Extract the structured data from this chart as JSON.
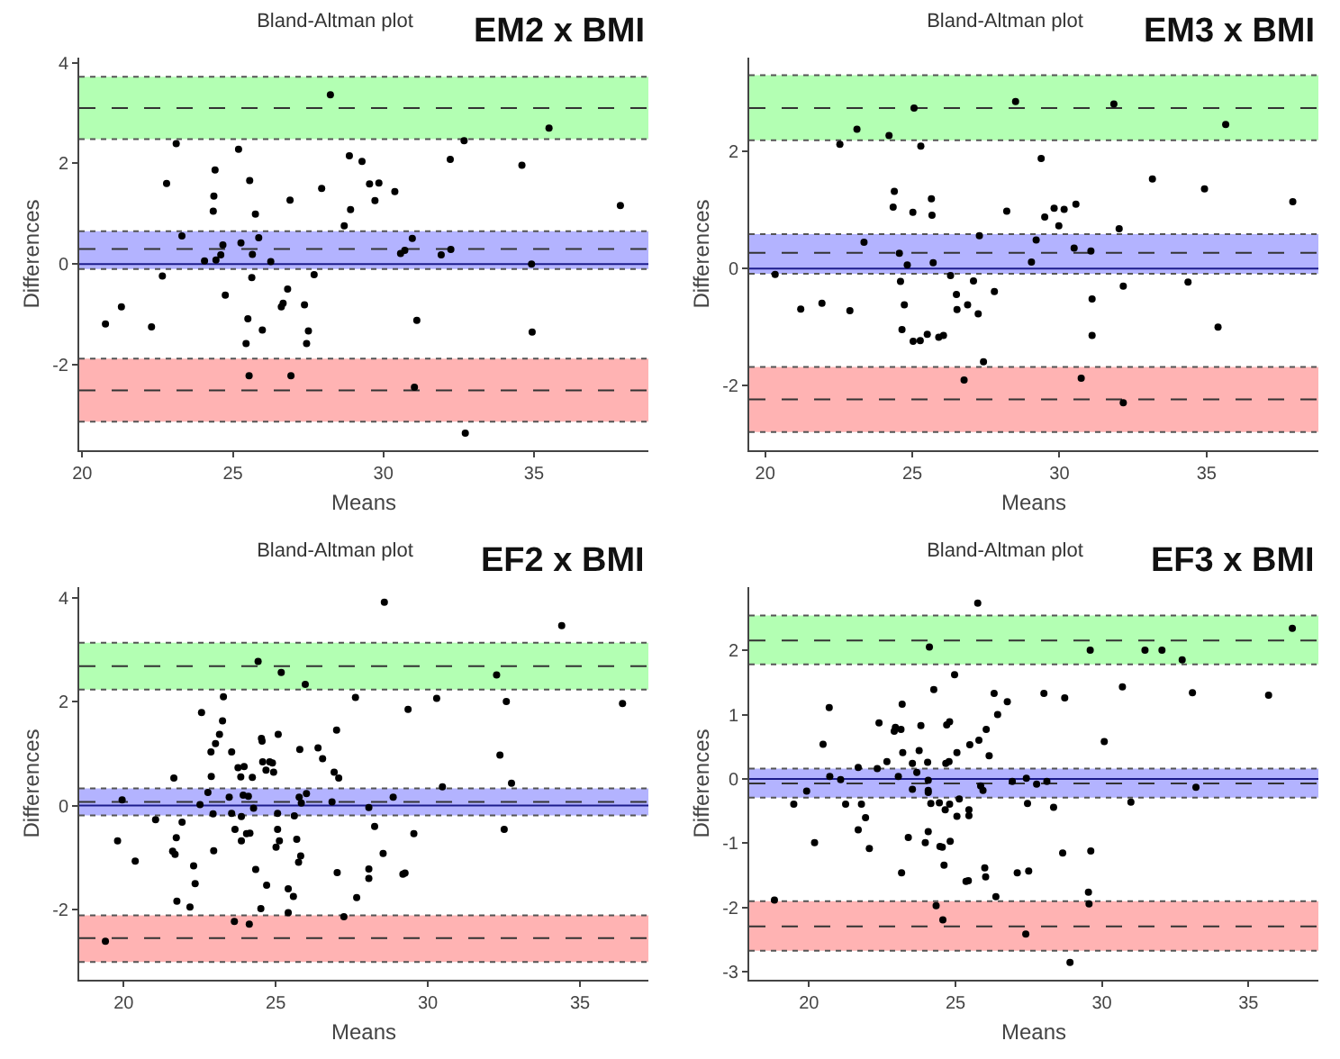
{
  "chart_data": [
    {
      "type": "scatter",
      "title": "Bland-Altman plot",
      "subtitle": "EM2 x BMI",
      "xlabel": "Means",
      "ylabel": "Differences",
      "color": "#000000",
      "marker": "circle",
      "xlim": [
        19.9,
        38.8
      ],
      "ylim": [
        -3.7,
        4.1
      ],
      "xticks": [
        20,
        25,
        30,
        35
      ],
      "yticks": [
        -2,
        0,
        2,
        4
      ],
      "x": [
        20.77,
        21.3,
        22.3,
        22.66,
        22.8,
        23.12,
        23.31,
        24.06,
        24.35,
        24.37,
        24.41,
        24.44,
        24.6,
        24.67,
        24.75,
        25.19,
        25.27,
        25.44,
        25.5,
        25.54,
        25.56,
        25.63,
        25.65,
        25.75,
        25.86,
        25.98,
        26.26,
        26.61,
        26.67,
        26.82,
        26.9,
        26.93,
        27.38,
        27.45,
        27.51,
        27.7,
        27.95,
        28.24,
        28.7,
        28.87,
        28.91,
        29.29,
        29.54,
        29.72,
        29.85,
        30.38,
        30.57,
        30.71,
        30.96,
        31.03,
        31.11,
        31.92,
        32.22,
        32.24,
        32.68,
        32.72,
        34.6,
        34.92,
        34.94,
        35.5,
        37.87
      ],
      "values": [
        -1.19,
        -0.85,
        -1.25,
        -0.24,
        1.6,
        2.39,
        0.56,
        0.06,
        1.05,
        1.35,
        1.87,
        0.08,
        0.18,
        0.38,
        -0.62,
        2.28,
        0.42,
        -1.58,
        -1.09,
        -2.22,
        1.66,
        -0.27,
        0.19,
        0.99,
        0.52,
        -1.31,
        0.05,
        -0.85,
        -0.78,
        -0.5,
        1.27,
        -2.22,
        -0.81,
        -1.58,
        -1.33,
        -0.21,
        1.5,
        3.36,
        0.76,
        2.15,
        1.08,
        2.04,
        1.59,
        1.26,
        1.61,
        1.44,
        0.21,
        0.27,
        0.51,
        -2.45,
        -1.12,
        0.18,
        2.08,
        0.29,
        2.45,
        -3.36,
        1.96,
        0.0,
        -1.35,
        2.7,
        1.16
      ],
      "bands": [
        {
          "axis": "y",
          "from": 2.48,
          "to": 3.72,
          "color": "#b3ffb3"
        },
        {
          "axis": "y",
          "from": -0.1,
          "to": 0.65,
          "color": "#b3b3ff"
        },
        {
          "axis": "y",
          "from": -3.13,
          "to": -1.88,
          "color": "#ffb3b3"
        }
      ],
      "ref_lines": [
        {
          "axis": "y",
          "value": 0,
          "color": "#1c1c8c",
          "line_style": "solid"
        },
        {
          "axis": "y",
          "value": 3.1,
          "color": "#333333",
          "line_style": "dashed"
        },
        {
          "axis": "y",
          "value": 0.3,
          "color": "#333333",
          "line_style": "dashed"
        },
        {
          "axis": "y",
          "value": -2.51,
          "color": "#333333",
          "line_style": "dashed"
        }
      ]
    },
    {
      "type": "scatter",
      "title": "Bland-Altman plot",
      "subtitle": "EM3 x BMI",
      "xlabel": "Means",
      "ylabel": "Differences",
      "color": "#000000",
      "marker": "circle",
      "xlim": [
        19.46,
        38.8
      ],
      "ylim": [
        -3.1,
        3.6
      ],
      "xticks": [
        20,
        25,
        30,
        35
      ],
      "yticks": [
        -2,
        0,
        2
      ],
      "x": [
        20.34,
        21.21,
        21.93,
        22.54,
        22.88,
        23.12,
        23.36,
        24.21,
        24.35,
        24.39,
        24.56,
        24.6,
        24.65,
        24.73,
        24.83,
        25.02,
        25.06,
        25.03,
        25.27,
        25.29,
        25.51,
        25.65,
        25.67,
        25.71,
        25.9,
        26.06,
        26.3,
        26.5,
        26.52,
        26.88,
        27.08,
        27.24,
        27.28,
        27.42,
        27.79,
        28.21,
        28.51,
        26.76,
        29.05,
        29.21,
        29.38,
        29.5,
        29.82,
        29.98,
        30.16,
        30.56,
        30.5,
        30.74,
        31.07,
        31.11,
        31.11,
        31.85,
        32.03,
        32.17,
        32.17,
        33.16,
        34.37,
        34.93,
        35.39,
        35.65,
        37.93
      ],
      "values": [
        -0.1,
        -0.69,
        -0.59,
        2.12,
        -0.72,
        2.38,
        0.45,
        2.27,
        1.05,
        1.32,
        0.26,
        -0.22,
        -1.04,
        -0.62,
        0.06,
        0.96,
        2.74,
        -1.24,
        -1.23,
        2.09,
        -1.12,
        1.19,
        0.91,
        0.1,
        -1.17,
        -1.14,
        -0.12,
        -0.44,
        -0.7,
        -0.62,
        -0.21,
        -0.77,
        0.56,
        -1.59,
        -0.39,
        0.98,
        2.85,
        -1.9,
        0.11,
        0.49,
        1.88,
        0.88,
        1.03,
        0.73,
        1.01,
        1.1,
        0.35,
        -1.87,
        0.3,
        -0.52,
        -1.14,
        2.81,
        0.68,
        -0.3,
        -2.29,
        1.53,
        -0.23,
        1.36,
        -1.0,
        2.46,
        1.14
      ],
      "bands": [
        {
          "axis": "y",
          "from": 2.19,
          "to": 3.3,
          "color": "#b3ffb3"
        },
        {
          "axis": "y",
          "from": -0.09,
          "to": 0.59,
          "color": "#b3b3ff"
        },
        {
          "axis": "y",
          "from": -2.79,
          "to": -1.68,
          "color": "#ffb3b3"
        }
      ],
      "ref_lines": [
        {
          "axis": "y",
          "value": 0,
          "color": "#1c1c8c",
          "line_style": "solid"
        },
        {
          "axis": "y",
          "value": 2.74,
          "color": "#333333",
          "line_style": "dashed"
        },
        {
          "axis": "y",
          "value": 0.27,
          "color": "#333333",
          "line_style": "dashed"
        },
        {
          "axis": "y",
          "value": -2.23,
          "color": "#333333",
          "line_style": "dashed"
        }
      ]
    },
    {
      "type": "scatter",
      "title": "Bland-Altman plot",
      "subtitle": "EF2 x BMI",
      "xlabel": "Means",
      "ylabel": "Differences",
      "color": "#000000",
      "marker": "circle",
      "xlim": [
        18.54,
        37.25
      ],
      "ylim": [
        -3.35,
        4.2
      ],
      "xticks": [
        20,
        25,
        30,
        35
      ],
      "yticks": [
        -2,
        0,
        2,
        4
      ],
      "x": [
        19.4,
        19.8,
        19.95,
        20.38,
        21.05,
        21.65,
        21.61,
        21.69,
        21.73,
        21.75,
        21.92,
        22.18,
        22.3,
        22.35,
        22.51,
        22.56,
        22.77,
        22.87,
        22.88,
        22.94,
        22.96,
        23.02,
        23.15,
        23.25,
        23.28,
        23.47,
        23.55,
        23.55,
        23.64,
        23.66,
        23.76,
        23.85,
        23.87,
        23.87,
        23.93,
        23.96,
        24.04,
        24.1,
        24.13,
        24.15,
        24.23,
        24.27,
        24.34,
        24.42,
        24.51,
        24.53,
        24.55,
        24.57,
        24.68,
        24.7,
        24.8,
        24.89,
        24.93,
        25.01,
        25.06,
        25.06,
        25.08,
        25.12,
        25.18,
        25.41,
        25.41,
        25.58,
        25.61,
        25.69,
        25.75,
        25.77,
        25.79,
        25.82,
        25.84,
        25.97,
        26.01,
        26.39,
        26.54,
        26.85,
        26.92,
        27.0,
        27.02,
        27.07,
        27.24,
        27.62,
        27.66,
        28.06,
        28.06,
        28.06,
        28.25,
        28.53,
        28.57,
        28.86,
        29.18,
        29.25,
        29.35,
        29.54,
        30.29,
        30.48,
        32.26,
        32.37,
        32.51,
        32.58,
        32.75,
        34.4,
        36.4
      ],
      "values": [
        -2.61,
        -0.68,
        0.11,
        -1.07,
        -0.27,
        0.53,
        -0.88,
        -0.94,
        -0.62,
        -1.84,
        -0.32,
        -1.95,
        -1.16,
        -1.5,
        0.02,
        1.79,
        0.25,
        1.03,
        0.56,
        -0.16,
        -0.87,
        1.19,
        1.37,
        1.63,
        2.09,
        0.16,
        1.03,
        -0.15,
        -2.23,
        -0.46,
        0.73,
        0.55,
        -0.21,
        -0.68,
        0.2,
        0.75,
        -0.54,
        0.18,
        -2.28,
        -0.53,
        0.54,
        -0.05,
        -1.23,
        2.77,
        -1.98,
        1.29,
        1.24,
        0.84,
        0.68,
        -1.53,
        0.84,
        0.82,
        0.64,
        -0.8,
        -0.15,
        -0.46,
        1.37,
        -0.68,
        2.56,
        -1.6,
        -2.06,
        -1.75,
        -0.2,
        -0.65,
        -1.09,
        0.16,
        1.08,
        -0.97,
        0.05,
        2.33,
        0.23,
        1.11,
        0.9,
        0.07,
        0.64,
        1.45,
        -1.29,
        0.53,
        -2.14,
        2.08,
        -1.77,
        -0.04,
        -1.22,
        -1.4,
        -0.4,
        -0.92,
        3.91,
        0.16,
        -1.32,
        -1.3,
        1.85,
        -0.54,
        2.06,
        0.36,
        2.51,
        0.97,
        -0.46,
        2.0,
        0.43,
        3.46,
        1.96
      ],
      "bands": [
        {
          "axis": "y",
          "from": 2.23,
          "to": 3.13,
          "color": "#b3ffb3"
        },
        {
          "axis": "y",
          "from": -0.19,
          "to": 0.33,
          "color": "#b3b3ff"
        },
        {
          "axis": "y",
          "from": -3.01,
          "to": -2.11,
          "color": "#ffb3b3"
        }
      ],
      "ref_lines": [
        {
          "axis": "y",
          "value": 0,
          "color": "#1c1c8c",
          "line_style": "solid"
        },
        {
          "axis": "y",
          "value": 2.68,
          "color": "#333333",
          "line_style": "dashed"
        },
        {
          "axis": "y",
          "value": 0.07,
          "color": "#333333",
          "line_style": "dashed"
        },
        {
          "axis": "y",
          "value": -2.55,
          "color": "#333333",
          "line_style": "dashed"
        }
      ]
    },
    {
      "type": "scatter",
      "title": "Bland-Altman plot",
      "subtitle": "EF3 x BMI",
      "xlabel": "Means",
      "ylabel": "Differences",
      "color": "#000000",
      "marker": "circle",
      "xlim": [
        17.96,
        37.39
      ],
      "ylim": [
        -3.12,
        2.98
      ],
      "xticks": [
        20,
        25,
        30,
        35
      ],
      "yticks": [
        -3,
        -2,
        -1,
        0,
        1,
        2
      ],
      "x": [
        18.82,
        19.48,
        19.92,
        20.19,
        20.48,
        20.69,
        20.71,
        21.08,
        21.25,
        21.68,
        21.68,
        21.79,
        21.93,
        22.06,
        22.33,
        22.39,
        22.66,
        22.91,
        22.95,
        23.05,
        23.14,
        23.16,
        23.18,
        23.2,
        23.39,
        23.53,
        23.53,
        23.68,
        23.76,
        23.82,
        23.97,
        24.05,
        24.07,
        24.07,
        24.07,
        24.07,
        24.11,
        24.16,
        24.26,
        24.34,
        24.45,
        24.47,
        24.55,
        24.57,
        24.61,
        24.65,
        24.67,
        24.7,
        24.78,
        24.8,
        24.8,
        24.82,
        24.97,
        25.05,
        25.05,
        25.13,
        25.36,
        25.44,
        25.46,
        25.46,
        25.49,
        25.76,
        25.8,
        25.86,
        25.94,
        26.0,
        26.03,
        26.05,
        26.15,
        26.32,
        26.38,
        26.44,
        26.77,
        26.94,
        27.11,
        27.42,
        27.46,
        27.5,
        27.4,
        27.77,
        28.02,
        28.12,
        28.35,
        28.66,
        28.73,
        28.91,
        29.54,
        29.56,
        29.6,
        29.62,
        30.08,
        30.7,
        30.99,
        31.47,
        32.05,
        32.74,
        33.09,
        33.21,
        35.69,
        36.5
      ],
      "values": [
        -1.88,
        -0.39,
        -0.19,
        -0.99,
        0.54,
        1.11,
        0.04,
        -0.01,
        -0.39,
        0.18,
        -0.79,
        -0.39,
        -0.6,
        -1.08,
        0.16,
        0.87,
        0.27,
        0.74,
        0.8,
        0.04,
        0.77,
        -1.46,
        1.16,
        0.41,
        -0.91,
        0.24,
        -0.16,
        0.1,
        0.44,
        0.83,
        -0.99,
        0.26,
        -0.02,
        -0.18,
        -0.21,
        -0.82,
        2.05,
        -0.38,
        1.39,
        -1.97,
        -0.37,
        -1.05,
        -1.06,
        -2.19,
        -1.34,
        -0.48,
        0.24,
        0.84,
        0.27,
        0.89,
        -0.39,
        -0.97,
        1.62,
        0.41,
        -0.58,
        -0.31,
        -1.59,
        -1.58,
        -0.48,
        -0.57,
        0.53,
        2.73,
        0.6,
        -0.11,
        -0.18,
        -1.38,
        -1.52,
        0.77,
        0.36,
        1.33,
        -1.83,
        1.0,
        1.2,
        -0.04,
        -1.46,
        0.01,
        -0.38,
        -1.43,
        -2.41,
        -0.08,
        1.33,
        -0.04,
        -0.44,
        -1.15,
        1.26,
        -2.85,
        -1.76,
        -1.94,
        2.0,
        -1.12,
        0.58,
        1.43,
        -0.36,
        2.0,
        2.0,
        1.85,
        1.34,
        -0.13,
        1.3,
        2.34
      ],
      "bands": [
        {
          "axis": "y",
          "from": 1.78,
          "to": 2.54,
          "color": "#b3ffb3"
        },
        {
          "axis": "y",
          "from": -0.29,
          "to": 0.16,
          "color": "#b3b3ff"
        },
        {
          "axis": "y",
          "from": -2.67,
          "to": -1.9,
          "color": "#ffb3b3"
        }
      ],
      "ref_lines": [
        {
          "axis": "y",
          "value": 0,
          "color": "#1c1c8c",
          "line_style": "solid"
        },
        {
          "axis": "y",
          "value": 2.15,
          "color": "#333333",
          "line_style": "dashed"
        },
        {
          "axis": "y",
          "value": -0.07,
          "color": "#333333",
          "line_style": "dashed"
        },
        {
          "axis": "y",
          "value": -2.29,
          "color": "#333333",
          "line_style": "dashed"
        }
      ]
    }
  ]
}
